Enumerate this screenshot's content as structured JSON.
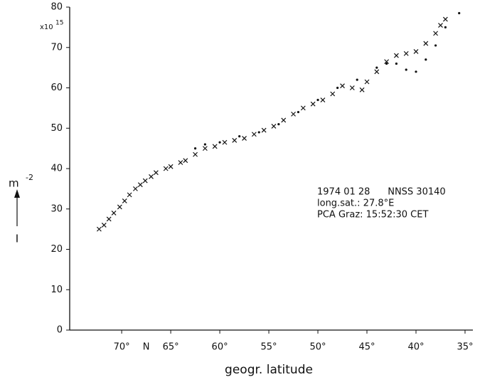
{
  "chart_data": {
    "type": "scatter",
    "x_label": "geogr. latitude",
    "y_label": "m",
    "y_label_exp": "-2",
    "y_label_symbol": "I",
    "y_scale_note": "x10",
    "y_scale_exp": "15",
    "hemisphere": "N",
    "annotations": [
      "1974 01 28      NNSS 30140",
      "long.sat.: 27.8°E",
      "PCA Graz: 15:52:30 CET"
    ],
    "xlim": [
      75.3,
      34.2
    ],
    "ylim": [
      0,
      80
    ],
    "xticks": [
      {
        "value": 70,
        "label": "70°"
      },
      {
        "value": 65,
        "label": "65°"
      },
      {
        "value": 60,
        "label": "60°"
      },
      {
        "value": 55,
        "label": "55°"
      },
      {
        "value": 50,
        "label": "50°"
      },
      {
        "value": 45,
        "label": "45°"
      },
      {
        "value": 40,
        "label": "40°"
      },
      {
        "value": 35,
        "label": "35°"
      }
    ],
    "yticks": [
      0,
      10,
      20,
      30,
      40,
      50,
      60,
      70,
      80
    ],
    "series": [
      {
        "marker": "cross",
        "color": "#111111",
        "x": [
          72.3,
          71.8,
          71.3,
          70.8,
          70.2,
          69.7,
          69.2,
          68.6,
          68.1,
          67.6,
          67,
          66.5,
          65.5,
          65,
          64,
          63.5,
          62.5,
          61.5,
          60.5,
          59.5,
          58.5,
          57.5,
          56.5,
          55.5,
          54.5,
          53.5,
          52.5,
          51.5,
          50.5,
          49.5,
          48.5,
          47.5,
          46.5,
          45.5,
          45,
          44,
          43,
          42,
          41,
          40,
          39,
          38,
          37.5,
          37
        ],
        "values": [
          25,
          26,
          27.5,
          29,
          30.5,
          32,
          33.5,
          35,
          36,
          37,
          38,
          39,
          40,
          40.5,
          41.5,
          42,
          43.5,
          45,
          45.5,
          46.5,
          47,
          47.5,
          48.5,
          49.5,
          50.5,
          52,
          53.5,
          55,
          56,
          57,
          58.5,
          60.5,
          60,
          59.5,
          61.5,
          64,
          66.5,
          68,
          68.5,
          69,
          71,
          73.5,
          75.5,
          77
        ]
      },
      {
        "marker": "dot",
        "color": "#111111",
        "x": [
          62.5,
          61.5,
          60,
          58,
          56,
          54,
          52,
          50,
          48,
          46,
          44,
          43,
          42,
          41,
          40,
          39,
          38,
          37,
          35.6
        ],
        "values": [
          45,
          46,
          46.5,
          48,
          49,
          51,
          54,
          57,
          60,
          62,
          65,
          66,
          66,
          64.5,
          64,
          67,
          70.5,
          75,
          78.5
        ]
      }
    ]
  }
}
